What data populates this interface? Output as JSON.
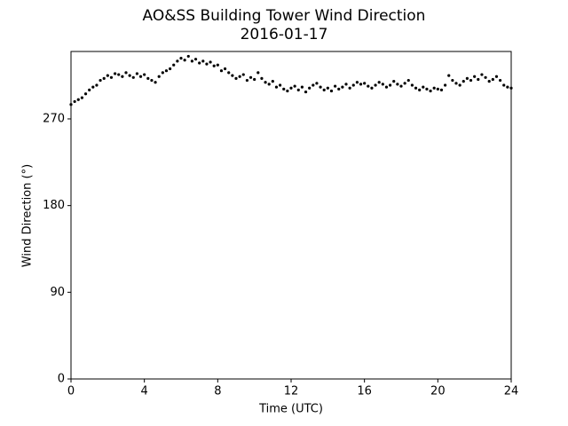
{
  "chart_data": {
    "type": "scatter",
    "title": "AO&SS Building Tower Wind Direction",
    "subtitle": "2016-01-17",
    "x_label": "Time (UTC)",
    "y_label": "Wind Direction (°)",
    "xlim": [
      0,
      24
    ],
    "xticks": [
      0,
      4,
      8,
      12,
      16,
      20,
      24
    ],
    "ylim": [
      0,
      340
    ],
    "yticks": [
      0,
      90,
      180,
      270
    ],
    "series": [
      {
        "color": "#000000",
        "x": [
          0,
          0.2,
          0.4,
          0.6,
          0.8,
          1,
          1.2,
          1.4,
          1.6,
          1.8,
          2,
          2.2,
          2.4,
          2.6,
          2.8,
          3,
          3.2,
          3.4,
          3.6,
          3.8,
          4,
          4.2,
          4.4,
          4.6,
          4.8,
          5,
          5.2,
          5.4,
          5.6,
          5.8,
          6,
          6.2,
          6.4,
          6.6,
          6.8,
          7,
          7.2,
          7.4,
          7.6,
          7.8,
          8,
          8.2,
          8.4,
          8.6,
          8.8,
          9,
          9.2,
          9.4,
          9.6,
          9.8,
          10,
          10.2,
          10.4,
          10.6,
          10.8,
          11,
          11.2,
          11.4,
          11.6,
          11.8,
          12,
          12.2,
          12.4,
          12.6,
          12.8,
          13,
          13.2,
          13.4,
          13.6,
          13.8,
          14,
          14.2,
          14.4,
          14.6,
          14.8,
          15,
          15.2,
          15.4,
          15.6,
          15.8,
          16,
          16.2,
          16.4,
          16.6,
          16.8,
          17,
          17.2,
          17.4,
          17.6,
          17.8,
          18,
          18.2,
          18.4,
          18.6,
          18.8,
          19,
          19.2,
          19.4,
          19.6,
          19.8,
          20,
          20.2,
          20.4,
          20.6,
          20.8,
          21,
          21.2,
          21.4,
          21.6,
          21.8,
          22,
          22.2,
          22.4,
          22.6,
          22.8,
          23,
          23.2,
          23.4,
          23.6,
          23.8,
          24
        ],
        "values": [
          285,
          288,
          290,
          292,
          296,
          300,
          303,
          305,
          310,
          312,
          315,
          313,
          317,
          316,
          314,
          318,
          315,
          313,
          317,
          314,
          316,
          312,
          310,
          308,
          314,
          318,
          320,
          322,
          326,
          330,
          333,
          331,
          335,
          330,
          332,
          328,
          330,
          327,
          329,
          325,
          326,
          320,
          322,
          318,
          315,
          312,
          314,
          316,
          310,
          313,
          311,
          318,
          312,
          308,
          306,
          309,
          303,
          305,
          301,
          299,
          302,
          304,
          300,
          303,
          298,
          302,
          305,
          307,
          303,
          300,
          302,
          299,
          304,
          301,
          303,
          306,
          302,
          305,
          308,
          306,
          307,
          304,
          302,
          305,
          308,
          306,
          303,
          305,
          309,
          306,
          304,
          307,
          310,
          305,
          302,
          300,
          303,
          301,
          299,
          302,
          301,
          300,
          305,
          315,
          310,
          307,
          305,
          309,
          312,
          310,
          314,
          311,
          316,
          313,
          309,
          311,
          314,
          310,
          305,
          303,
          302
        ]
      }
    ]
  }
}
